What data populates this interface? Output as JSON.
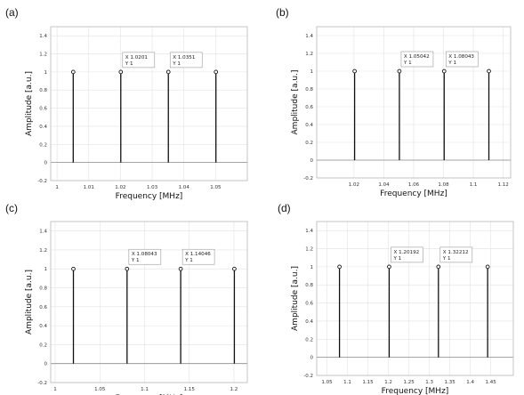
{
  "chart_data": [
    {
      "type": "stem",
      "panel_label": "(a)",
      "xlabel": "Frequency [MHz]",
      "ylabel": "Amplitude [a.u.]",
      "xlim": [
        0.998,
        1.06
      ],
      "ylim": [
        -0.2,
        1.5
      ],
      "x_ticks": [
        "1",
        "1.01",
        "1.02",
        "1.03",
        "1.04",
        "1.05"
      ],
      "x_tick_values": [
        1.0,
        1.01,
        1.02,
        1.03,
        1.04,
        1.05
      ],
      "y_ticks": [
        "-0.2",
        "0",
        "0.2",
        "0.4",
        "0.6",
        "0.8",
        "1",
        "1.2",
        "1.4"
      ],
      "y_tick_values": [
        -0.2,
        0,
        0.2,
        0.4,
        0.6,
        0.8,
        1.0,
        1.2,
        1.4
      ],
      "x": [
        1.0051,
        1.0201,
        1.0351,
        1.0501
      ],
      "y": [
        1,
        1,
        1,
        1
      ],
      "grid": true,
      "datatips": [
        {
          "x_text": "X 1.0201",
          "y_text": "Y 1",
          "x": 1.0201
        },
        {
          "x_text": "X 1.0351",
          "y_text": "Y 1",
          "x": 1.0351
        }
      ]
    },
    {
      "type": "stem",
      "panel_label": "(b)",
      "xlabel": "Frequency [MHz]",
      "ylabel": "Amplitude [a.u.]",
      "xlim": [
        0.995,
        1.125
      ],
      "ylim": [
        -0.2,
        1.5
      ],
      "x_ticks": [
        "1.02",
        "1.04",
        "1.06",
        "1.08",
        "1.1",
        "1.12"
      ],
      "x_tick_values": [
        1.02,
        1.04,
        1.06,
        1.08,
        1.1,
        1.12
      ],
      "y_ticks": [
        "-0.2",
        "0",
        "0.2",
        "0.4",
        "0.6",
        "0.8",
        "1",
        "1.2",
        "1.4"
      ],
      "y_tick_values": [
        -0.2,
        0,
        0.2,
        0.4,
        0.6,
        0.8,
        1.0,
        1.2,
        1.4
      ],
      "x": [
        1.0204,
        1.05042,
        1.08043,
        1.1104
      ],
      "y": [
        1,
        1,
        1,
        1
      ],
      "grid": true,
      "datatips": [
        {
          "x_text": "X 1.05042",
          "y_text": "Y 1",
          "x": 1.05042
        },
        {
          "x_text": "X 1.08043",
          "y_text": "Y 1",
          "x": 1.08043
        }
      ]
    },
    {
      "type": "stem",
      "panel_label": "(c)",
      "xlabel": "Frequency [MHz]",
      "ylabel": "Amplitude [a.u.]",
      "xlim": [
        0.995,
        1.215
      ],
      "ylim": [
        -0.2,
        1.5
      ],
      "x_ticks": [
        "1",
        "1.05",
        "1.1",
        "1.15",
        "1.2"
      ],
      "x_tick_values": [
        1.0,
        1.05,
        1.1,
        1.15,
        1.2
      ],
      "y_ticks": [
        "-0.2",
        "0",
        "0.2",
        "0.4",
        "0.6",
        "0.8",
        "1",
        "1.2",
        "1.4"
      ],
      "y_tick_values": [
        -0.2,
        0,
        0.2,
        0.4,
        0.6,
        0.8,
        1.0,
        1.2,
        1.4
      ],
      "x": [
        1.0204,
        1.08043,
        1.14046,
        1.2005
      ],
      "y": [
        1,
        1,
        1,
        1
      ],
      "grid": true,
      "datatips": [
        {
          "x_text": "X 1.08043",
          "y_text": "Y 1",
          "x": 1.08043
        },
        {
          "x_text": "X 1.14046",
          "y_text": "Y 1",
          "x": 1.14046
        }
      ]
    },
    {
      "type": "stem",
      "panel_label": "(d)",
      "xlabel": "Frequency [MHz]",
      "ylabel": "Amplitude [a.u.]",
      "xlim": [
        1.025,
        1.505
      ],
      "ylim": [
        -0.2,
        1.5
      ],
      "x_ticks": [
        "1.05",
        "1.1",
        "1.15",
        "1.2",
        "1.25",
        "1.3",
        "1.35",
        "1.4",
        "1.45"
      ],
      "x_tick_values": [
        1.05,
        1.1,
        1.15,
        1.2,
        1.25,
        1.3,
        1.35,
        1.4,
        1.45
      ],
      "y_ticks": [
        "-0.2",
        "0",
        "0.2",
        "0.4",
        "0.6",
        "0.8",
        "1",
        "1.2",
        "1.4"
      ],
      "y_tick_values": [
        -0.2,
        0,
        0.2,
        0.4,
        0.6,
        0.8,
        1.0,
        1.2,
        1.4
      ],
      "x": [
        1.0806,
        1.20192,
        1.32212,
        1.4423
      ],
      "y": [
        1,
        1,
        1,
        1
      ],
      "grid": true,
      "datatips": [
        {
          "x_text": "X 1.20192",
          "y_text": "Y 1",
          "x": 1.20192
        },
        {
          "x_text": "X 1.32212",
          "y_text": "Y 1",
          "x": 1.32212
        }
      ]
    }
  ]
}
